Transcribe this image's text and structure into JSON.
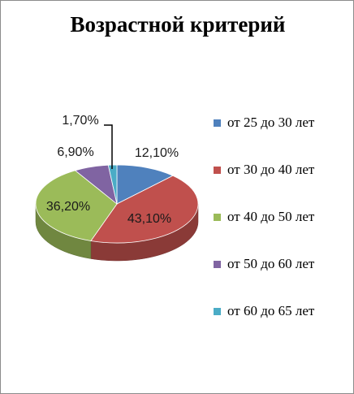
{
  "chart_data": {
    "type": "pie",
    "title": "Возрастной критерий",
    "categories": [
      "от 25 до 30 лет",
      "от 30 до 40 лет",
      "от 40 до 50 лет",
      "от 50 до 60 лет",
      "от 60 до 65 лет"
    ],
    "values": [
      12.1,
      43.1,
      36.2,
      6.9,
      1.7
    ],
    "data_labels": [
      "12,10%",
      "43,10%",
      "36,20%",
      "6,90%",
      "1,70%"
    ],
    "colors": [
      "#4f81bd",
      "#c0504d",
      "#9bbb59",
      "#8064a2",
      "#4bacc6"
    ],
    "legend": "right",
    "style": "3d"
  }
}
